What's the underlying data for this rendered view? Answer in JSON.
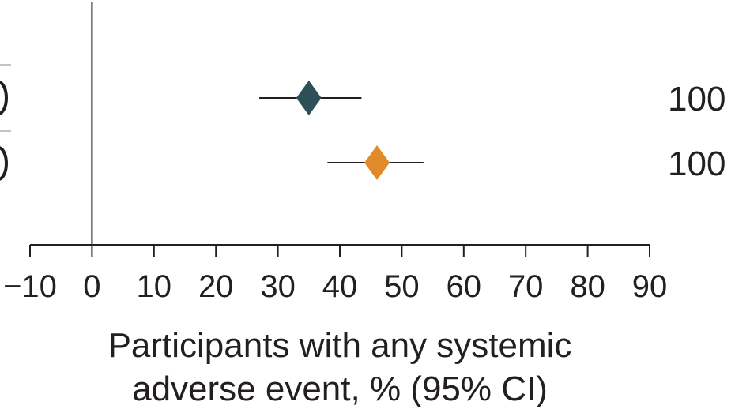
{
  "chart_data": {
    "type": "scatter",
    "subtype": "forest-plot",
    "xlabel_lines": [
      "Participants with any systemic",
      "adverse event, % (95% CI)"
    ],
    "xlim": [
      -10,
      90
    ],
    "xticks": [
      -10,
      0,
      10,
      20,
      30,
      40,
      50,
      60,
      70,
      80,
      90
    ],
    "reference_line": 0,
    "series": [
      {
        "estimate": 35,
        "ci": [
          27,
          43.5
        ],
        "color": "#2f4f57",
        "right_label": "100"
      },
      {
        "estimate": 46,
        "ci": [
          38,
          53.5
        ],
        "color": "#e08a2a",
        "right_label": "100"
      }
    ]
  }
}
